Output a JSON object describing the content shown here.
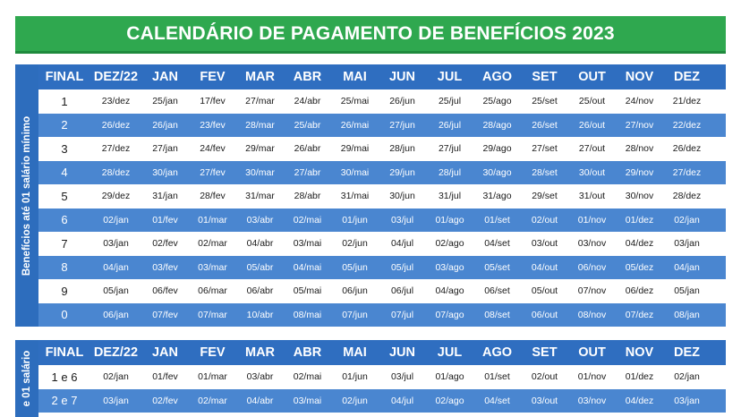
{
  "title": "CALENDÁRIO DE PAGAMENTO DE BENEFÍCIOS 2023",
  "colors": {
    "green": "#2fa84f",
    "blue_dark": "#2f6ec0",
    "blue_row": "#4a86d0"
  },
  "headers": [
    "FINAL",
    "DEZ/22",
    "JAN",
    "FEV",
    "MAR",
    "ABR",
    "MAI",
    "JUN",
    "JUL",
    "AGO",
    "SET",
    "OUT",
    "NOV",
    "DEZ"
  ],
  "table1": {
    "side_label": "Benefícios até 01 salário mínimo",
    "rows": [
      [
        "1",
        "23/dez",
        "25/jan",
        "17/fev",
        "27/mar",
        "24/abr",
        "25/mai",
        "26/jun",
        "25/jul",
        "25/ago",
        "25/set",
        "25/out",
        "24/nov",
        "21/dez"
      ],
      [
        "2",
        "26/dez",
        "26/jan",
        "23/fev",
        "28/mar",
        "25/abr",
        "26/mai",
        "27/jun",
        "26/jul",
        "28/ago",
        "26/set",
        "26/out",
        "27/nov",
        "22/dez"
      ],
      [
        "3",
        "27/dez",
        "27/jan",
        "24/fev",
        "29/mar",
        "26/abr",
        "29/mai",
        "28/jun",
        "27/jul",
        "29/ago",
        "27/set",
        "27/out",
        "28/nov",
        "26/dez"
      ],
      [
        "4",
        "28/dez",
        "30/jan",
        "27/fev",
        "30/mar",
        "27/abr",
        "30/mai",
        "29/jun",
        "28/jul",
        "30/ago",
        "28/set",
        "30/out",
        "29/nov",
        "27/dez"
      ],
      [
        "5",
        "29/dez",
        "31/jan",
        "28/fev",
        "31/mar",
        "28/abr",
        "31/mai",
        "30/jun",
        "31/jul",
        "31/ago",
        "29/set",
        "31/out",
        "30/nov",
        "28/dez"
      ],
      [
        "6",
        "02/jan",
        "01/fev",
        "01/mar",
        "03/abr",
        "02/mai",
        "01/jun",
        "03/jul",
        "01/ago",
        "01/set",
        "02/out",
        "01/nov",
        "01/dez",
        "02/jan"
      ],
      [
        "7",
        "03/jan",
        "02/fev",
        "02/mar",
        "04/abr",
        "03/mai",
        "02/jun",
        "04/jul",
        "02/ago",
        "04/set",
        "03/out",
        "03/nov",
        "04/dez",
        "03/jan"
      ],
      [
        "8",
        "04/jan",
        "03/fev",
        "03/mar",
        "05/abr",
        "04/mai",
        "05/jun",
        "05/jul",
        "03/ago",
        "05/set",
        "04/out",
        "06/nov",
        "05/dez",
        "04/jan"
      ],
      [
        "9",
        "05/jan",
        "06/fev",
        "06/mar",
        "06/abr",
        "05/mai",
        "06/jun",
        "06/jul",
        "04/ago",
        "06/set",
        "05/out",
        "07/nov",
        "06/dez",
        "05/jan"
      ],
      [
        "0",
        "06/jan",
        "07/fev",
        "07/mar",
        "10/abr",
        "08/mai",
        "07/jun",
        "07/jul",
        "07/ago",
        "08/set",
        "06/out",
        "08/nov",
        "07/dez",
        "08/jan"
      ]
    ]
  },
  "table2": {
    "side_label": "e 01 salário",
    "rows": [
      [
        "1 e 6",
        "02/jan",
        "01/fev",
        "01/mar",
        "03/abr",
        "02/mai",
        "01/jun",
        "03/jul",
        "01/ago",
        "01/set",
        "02/out",
        "01/nov",
        "01/dez",
        "02/jan"
      ],
      [
        "2 e 7",
        "03/jan",
        "02/fev",
        "02/mar",
        "04/abr",
        "03/mai",
        "02/jun",
        "04/jul",
        "02/ago",
        "04/set",
        "03/out",
        "03/nov",
        "04/dez",
        "03/jan"
      ]
    ]
  }
}
